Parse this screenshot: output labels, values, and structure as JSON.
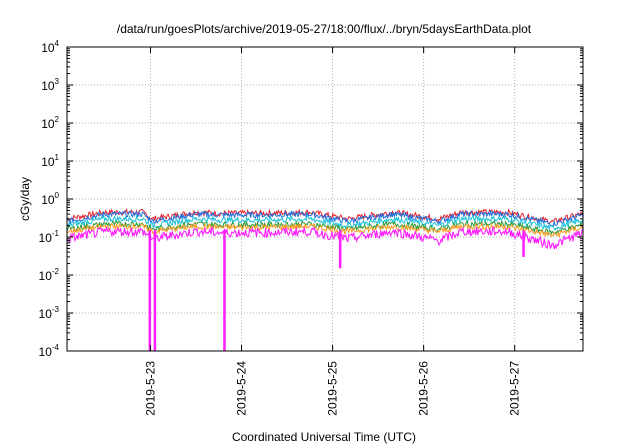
{
  "chart_data": {
    "type": "line",
    "title": "/data/run/goesPlots/archive/2019-05-27/18:00/flux/../bryn/5daysEarthData.plot",
    "xlabel": "Coordinated Universal Time (UTC)",
    "ylabel": "cGy/day",
    "xlim": [
      "2019-05-22T02:00",
      "2019-05-27T18:00"
    ],
    "ylim": [
      0.0001,
      10000
    ],
    "yscale": "log",
    "grid": true,
    "x_ticks": [
      "2019-5-23",
      "2019-5-24",
      "2019-5-25",
      "2019-5-26",
      "2019-5-27"
    ],
    "x_tick_dates": [
      "2019-05-23T00:00",
      "2019-05-24T00:00",
      "2019-05-25T00:00",
      "2019-05-26T00:00",
      "2019-05-27T00:00"
    ],
    "y_ticks": [
      {
        "base": "10",
        "exp": "-4",
        "value": 0.0001
      },
      {
        "base": "10",
        "exp": "-3",
        "value": 0.001
      },
      {
        "base": "10",
        "exp": "-2",
        "value": 0.01
      },
      {
        "base": "10",
        "exp": "-1",
        "value": 0.1
      },
      {
        "base": "10",
        "exp": "0",
        "value": 1
      },
      {
        "base": "10",
        "exp": "1",
        "value": 10
      },
      {
        "base": "10",
        "exp": "2",
        "value": 100
      },
      {
        "base": "10",
        "exp": "3",
        "value": 1000
      },
      {
        "base": "10",
        "exp": "4",
        "value": 10000
      }
    ],
    "x": [
      "2019-05-22T02:00",
      "2019-05-22T12:00",
      "2019-05-22T22:00",
      "2019-05-23T00:30",
      "2019-05-23T12:00",
      "2019-05-23T19:00",
      "2019-05-24T06:00",
      "2019-05-24T18:00",
      "2019-05-25T04:00",
      "2019-05-25T16:00",
      "2019-05-26T04:00",
      "2019-05-26T10:00",
      "2019-05-26T22:00",
      "2019-05-27T10:00",
      "2019-05-27T18:00"
    ],
    "series": [
      {
        "color": "#e8202a",
        "values": [
          0.3,
          0.45,
          0.45,
          0.3,
          0.45,
          0.42,
          0.42,
          0.45,
          0.3,
          0.45,
          0.3,
          0.45,
          0.45,
          0.25,
          0.42
        ]
      },
      {
        "color": "#1c6fe0",
        "values": [
          0.26,
          0.4,
          0.4,
          0.26,
          0.4,
          0.38,
          0.38,
          0.4,
          0.26,
          0.4,
          0.26,
          0.4,
          0.4,
          0.22,
          0.38
        ]
      },
      {
        "color": "#19c0d8",
        "values": [
          0.2,
          0.3,
          0.3,
          0.2,
          0.3,
          0.28,
          0.28,
          0.3,
          0.2,
          0.3,
          0.2,
          0.3,
          0.3,
          0.17,
          0.28
        ]
      },
      {
        "color": "#2e9a3a",
        "values": [
          0.16,
          0.22,
          0.22,
          0.16,
          0.22,
          0.21,
          0.21,
          0.22,
          0.16,
          0.22,
          0.16,
          0.22,
          0.22,
          0.13,
          0.21
        ]
      },
      {
        "color": "#ff9a1e",
        "values": [
          0.14,
          0.19,
          0.19,
          0.14,
          0.19,
          0.18,
          0.18,
          0.19,
          0.14,
          0.19,
          0.14,
          0.19,
          0.19,
          0.11,
          0.18
        ]
      },
      {
        "color": "#ff1cff",
        "values": [
          0.09,
          0.14,
          0.14,
          0.09,
          0.14,
          0.13,
          0.13,
          0.14,
          0.09,
          0.14,
          0.08,
          0.14,
          0.14,
          0.06,
          0.13
        ]
      }
    ],
    "dropouts": [
      {
        "x": "2019-05-22T23:50",
        "min": 0.0001
      },
      {
        "x": "2019-05-23T01:10",
        "min": 0.0001
      },
      {
        "x": "2019-05-23T19:30",
        "min": 0.0001
      },
      {
        "x": "2019-05-25T02:00",
        "min": 0.015
      },
      {
        "x": "2019-05-27T02:20",
        "min": 0.03
      }
    ]
  }
}
